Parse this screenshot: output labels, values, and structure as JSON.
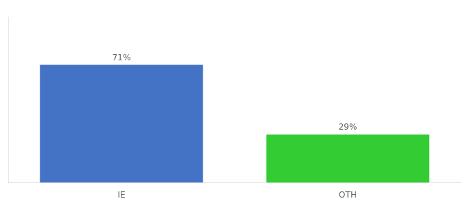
{
  "chart_data": {
    "type": "bar",
    "categories": [
      "IE",
      "OTH"
    ],
    "values": [
      71,
      29
    ],
    "value_labels": [
      "71%",
      "29%"
    ],
    "data_labels": true,
    "colors": [
      "#4472c4",
      "#33cc33"
    ],
    "ylim": [
      0,
      100
    ],
    "grid": false,
    "tick_labels": "x"
  }
}
